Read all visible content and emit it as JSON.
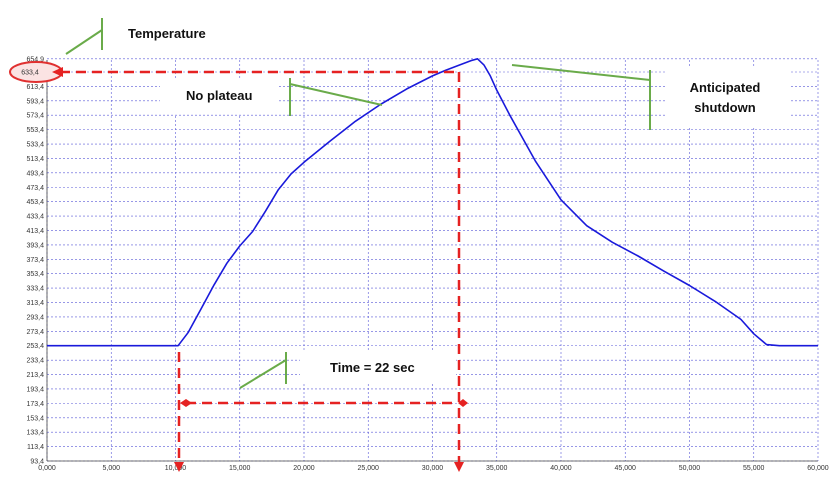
{
  "chart_data": {
    "type": "line",
    "title": "",
    "xlabel": "",
    "ylabel": "",
    "xlim": [
      0,
      60000
    ],
    "ylim": [
      93.4,
      654.9
    ],
    "grid": true,
    "x_ticks": [
      "0,000",
      "5,000",
      "10,000",
      "15,000",
      "20,000",
      "25,000",
      "30,000",
      "35,000",
      "40,000",
      "45,000",
      "50,000",
      "55,000",
      "60,000"
    ],
    "y_ticks": [
      "93,4",
      "113,4",
      "133,4",
      "153,4",
      "173,4",
      "193,4",
      "213,4",
      "233,4",
      "253,4",
      "273,4",
      "293,4",
      "313,4",
      "333,4",
      "353,4",
      "373,4",
      "393,4",
      "413,4",
      "433,4",
      "453,4",
      "473,4",
      "493,4",
      "513,4",
      "533,4",
      "553,4",
      "573,4",
      "593,4",
      "613,4",
      "633,4",
      "654,9"
    ],
    "series": [
      {
        "color": "#1a1adb",
        "x": [
          0,
          5000,
          10000,
          10200,
          11000,
          12000,
          13000,
          14000,
          15000,
          16000,
          17000,
          18000,
          19000,
          20000,
          22000,
          24000,
          26000,
          28000,
          30000,
          31000,
          32000,
          33000,
          33500,
          34000,
          34500,
          35000,
          36000,
          38000,
          40000,
          42000,
          44000,
          46000,
          48000,
          50000,
          52000,
          54000,
          55000,
          56000,
          57000,
          60000
        ],
        "y": [
          253.4,
          253.4,
          253.4,
          253.4,
          272,
          305,
          338,
          368,
          392,
          412,
          440,
          470,
          492,
          508,
          537,
          565,
          589,
          610,
          628,
          636,
          644,
          652,
          654.9,
          645,
          628,
          608,
          574,
          510,
          456,
          420,
          397,
          378,
          357,
          337,
          315,
          290,
          270,
          255,
          253.4,
          253.4
        ]
      }
    ],
    "annotations": {
      "temperature": "Temperature",
      "no_plateau": "No plateau",
      "anticipated_1": "Anticipated",
      "anticipated_2": "shutdown",
      "time": "Time = 22 sec",
      "highlight_y": 633.4,
      "start_x": 10000,
      "end_x": 32000,
      "arrow_y": 178
    }
  }
}
